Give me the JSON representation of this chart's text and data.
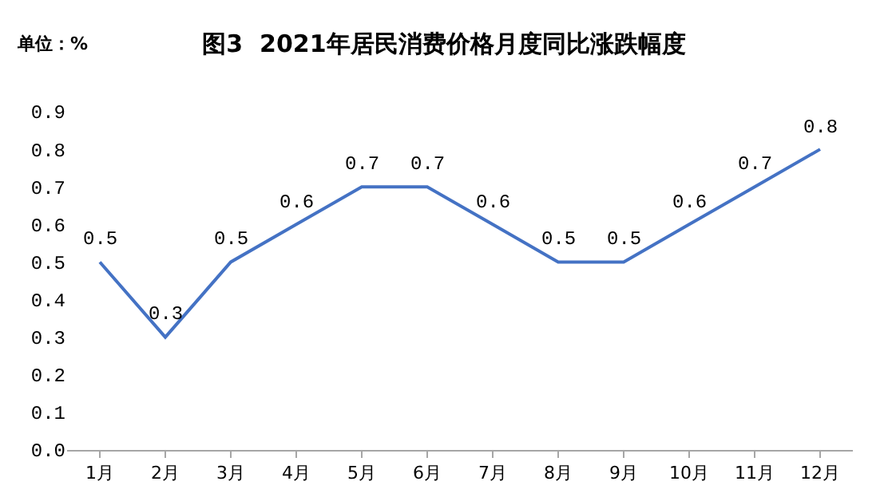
{
  "chart_data": {
    "type": "line",
    "title": "图3  2021年居民消费价格月度同比涨跌幅度",
    "ylabel": "单位：%",
    "categories": [
      "1月",
      "2月",
      "3月",
      "4月",
      "5月",
      "6月",
      "7月",
      "8月",
      "9月",
      "10月",
      "11月",
      "12月"
    ],
    "series": [
      {
        "color": "#4472c4",
        "values": [
          0.5,
          0.3,
          0.5,
          0.6,
          0.7,
          0.7,
          0.6,
          0.5,
          0.5,
          0.6,
          0.7,
          0.8
        ]
      }
    ],
    "ylim": [
      0,
      0.9
    ],
    "yticks": [
      {
        "value": 0,
        "label": "0.0"
      },
      0.1,
      0.2,
      0.3,
      0.4,
      0.5,
      0.6,
      0.7,
      0.8,
      0.9
    ],
    "grid": false,
    "marker": "none",
    "line_style": "solid",
    "data_labels": true
  }
}
